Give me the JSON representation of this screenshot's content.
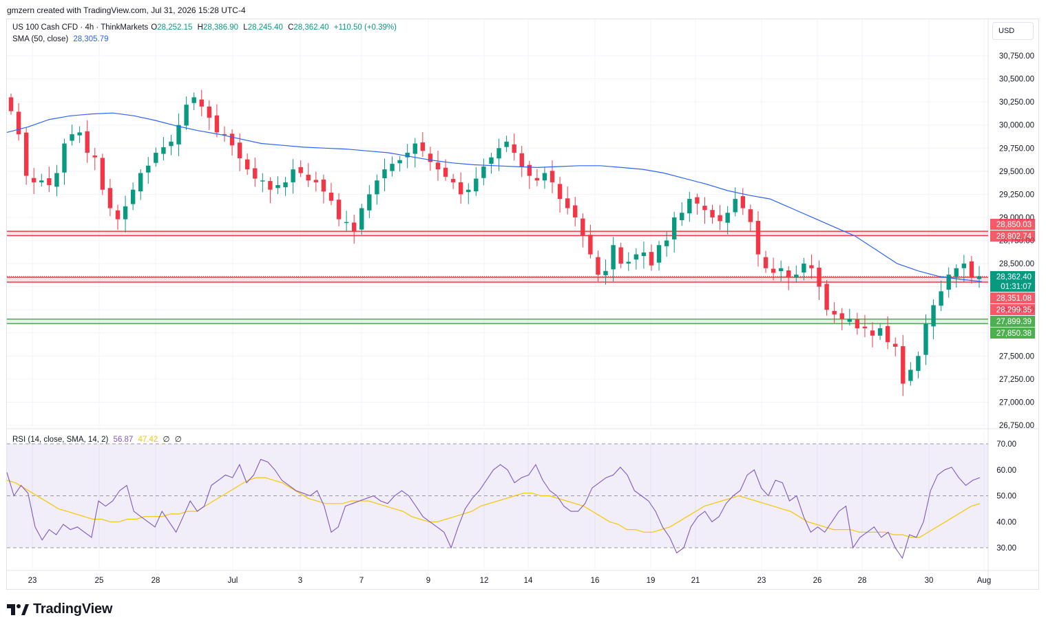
{
  "header": {
    "attribution": "gmzern created with TradingView.com, Jul 31, 2026 15:28 UTC-4"
  },
  "legend": {
    "symbol": "US 100 Cash CFD · 4h · ThinkMarkets",
    "open_label": "O",
    "open": "28,252.15",
    "high_label": "H",
    "high": "28,386.90",
    "low_label": "L",
    "low": "28,245.40",
    "close_label": "C",
    "close": "28,362.40",
    "change": "+110.50 (+0.39%)",
    "sma_label": "SMA (50, close)",
    "sma_value": "28,305.79",
    "rsi_label": "RSI (14, close, SMA, 14, 2)",
    "rsi_value": "56.87",
    "rsi_sma_value": "47.42",
    "rsi_extra_1": "∅",
    "rsi_extra_2": "∅"
  },
  "currency_button": "USD",
  "brand": {
    "name": "TradingView",
    "icon": "tradingview-logo-icon"
  },
  "colors": {
    "up": "#089981",
    "down": "#f23645",
    "sma": "#2962ff",
    "rsi": "#7e57c2",
    "rsi_sma": "#f7c600",
    "resistance": "#f23645",
    "support": "#4caf50"
  },
  "chart_data": [
    {
      "type": "candlestick",
      "title": "US 100 Cash CFD · 4h · ThinkMarkets",
      "ylim": [
        26750,
        30750
      ],
      "y_ticks": [
        "30,750.00",
        "30,500.00",
        "30,250.00",
        "30,000.00",
        "29,750.00",
        "29,500.00",
        "29,250.00",
        "29,000.00",
        "28,750.00",
        "28,500.00",
        "28,250.00",
        "28,000.00",
        "27,750.00",
        "27,500.00",
        "27,250.00",
        "27,000.00",
        "26,750.00"
      ],
      "x_ticks": [
        "23",
        "25",
        "28",
        "Jul",
        "3",
        "7",
        "9",
        "12",
        "14",
        "16",
        "19",
        "21",
        "23",
        "26",
        "28",
        "30",
        "Aug"
      ],
      "close_series": [
        30150,
        29900,
        29450,
        29380,
        29400,
        29350,
        29480,
        29800,
        29900,
        29920,
        29700,
        29650,
        29300,
        29100,
        28980,
        29120,
        29300,
        29480,
        29560,
        29700,
        29760,
        29820,
        30000,
        30220,
        30300,
        30200,
        30080,
        29920,
        29900,
        29780,
        29640,
        29520,
        29420,
        29400,
        29300,
        29350,
        29380,
        29520,
        29480,
        29400,
        29380,
        29280,
        29180,
        28980,
        28950,
        28850,
        29100,
        29250,
        29400,
        29520,
        29580,
        29620,
        29700,
        29800,
        29720,
        29600,
        29520,
        29440,
        29380,
        29250,
        29300,
        29420,
        29550,
        29650,
        29750,
        29820,
        29700,
        29550,
        29450,
        29400,
        29480,
        29380,
        29200,
        29100,
        29000,
        28800,
        28600,
        28380,
        28420,
        28700,
        28500,
        28520,
        28600,
        28620,
        28480,
        28700,
        28750,
        29000,
        29050,
        29200,
        29150,
        29080,
        29000,
        28960,
        29050,
        29200,
        29100,
        28950,
        28600,
        28450,
        28400,
        28450,
        28350,
        28380,
        28500,
        28450,
        28250,
        28000,
        27950,
        27900,
        27900,
        27800,
        27800,
        27720,
        27800,
        27650,
        27600,
        27200,
        27350,
        27500,
        27850,
        28050,
        28200,
        28380,
        28450,
        28500,
        28350,
        28362
      ],
      "sma_50": [
        29920,
        29980,
        30060,
        30100,
        30120,
        30130,
        30100,
        30050,
        29990,
        29940,
        29900,
        29850,
        29800,
        29780,
        29760,
        29750,
        29740,
        29720,
        29700,
        29660,
        29620,
        29590,
        29570,
        29560,
        29550,
        29540,
        29550,
        29560,
        29560,
        29540,
        29520,
        29480,
        29420,
        29360,
        29290,
        29240,
        29200,
        29100,
        29000,
        28900,
        28800,
        28650,
        28500,
        28420,
        28360,
        28330,
        28305
      ],
      "levels": {
        "resistance_zone": [
          28802.74,
          28850.03
        ],
        "current_zone": [
          28299.35,
          28351.08
        ],
        "support_zone": [
          27850.38,
          27899.39
        ]
      },
      "price_labels": [
        {
          "value": "28,850.03",
          "kind": "resistance"
        },
        {
          "value": "28,802.74",
          "kind": "resistance"
        },
        {
          "value": "28,362.40",
          "kind": "last"
        },
        {
          "value": "01:31:07",
          "kind": "countdown"
        },
        {
          "value": "28,351.08",
          "kind": "resistance"
        },
        {
          "value": "28,299.35",
          "kind": "resistance"
        },
        {
          "value": "27,899.39",
          "kind": "support"
        },
        {
          "value": "27,850.38",
          "kind": "support"
        }
      ]
    },
    {
      "type": "line",
      "title": "RSI (14, close, SMA, 14, 2)",
      "ylim": [
        25,
        72
      ],
      "y_ticks": [
        "70.00",
        "60.00",
        "50.00",
        "40.00",
        "30.00"
      ],
      "bands": [
        30,
        50,
        70
      ],
      "series": [
        {
          "name": "RSI",
          "values": [
            59,
            50,
            54,
            51,
            38,
            33,
            37,
            35,
            39,
            37,
            38,
            36,
            34,
            48,
            46,
            48,
            52,
            54,
            44,
            42,
            40,
            38,
            44,
            40,
            36,
            42,
            48,
            44,
            46,
            54,
            56,
            58,
            57,
            62,
            55,
            58,
            64,
            63,
            60,
            56,
            54,
            52,
            51,
            50,
            52,
            46,
            36,
            38,
            46,
            47,
            48,
            49,
            50,
            48,
            47,
            50,
            52,
            50,
            46,
            42,
            40,
            38,
            36,
            30,
            38,
            45,
            49,
            52,
            56,
            60,
            62,
            60,
            55,
            57,
            58,
            62,
            56,
            52,
            50,
            46,
            44,
            44,
            47,
            53,
            55,
            57,
            58,
            61,
            58,
            52,
            50,
            48,
            44,
            38,
            34,
            28,
            30,
            38,
            42,
            44,
            40,
            42,
            47,
            50,
            52,
            58,
            60,
            53,
            50,
            56,
            55,
            48,
            50,
            42,
            36,
            38,
            36,
            40,
            44,
            46,
            30,
            34,
            36,
            38,
            34,
            36,
            30,
            26,
            35,
            34,
            40,
            52,
            58,
            60,
            61,
            57,
            54,
            56,
            57
          ]
        },
        {
          "name": "RSI SMA",
          "values": [
            56,
            55,
            53,
            51,
            49,
            47,
            45,
            44,
            43,
            42,
            41,
            41,
            40,
            40,
            41,
            41,
            42,
            42,
            42,
            43,
            43,
            44,
            44,
            46,
            48,
            50,
            52,
            54,
            56,
            57,
            57,
            56,
            55,
            53,
            51,
            49,
            48,
            47,
            47,
            47,
            48,
            48,
            48,
            47,
            46,
            45,
            44,
            42,
            41,
            40,
            40,
            41,
            42,
            43,
            44,
            46,
            47,
            48,
            49,
            50,
            51,
            51,
            50,
            50,
            49,
            48,
            47,
            46,
            44,
            42,
            40,
            39,
            37,
            37,
            36,
            36,
            37,
            38,
            40,
            42,
            44,
            46,
            47,
            48,
            49,
            50,
            49,
            48,
            47,
            46,
            45,
            44,
            42,
            40,
            39,
            38,
            37,
            37,
            37,
            36,
            36,
            36,
            36,
            35,
            35,
            34,
            34,
            36,
            38,
            40,
            42,
            44,
            46,
            47
          ]
        }
      ]
    }
  ]
}
